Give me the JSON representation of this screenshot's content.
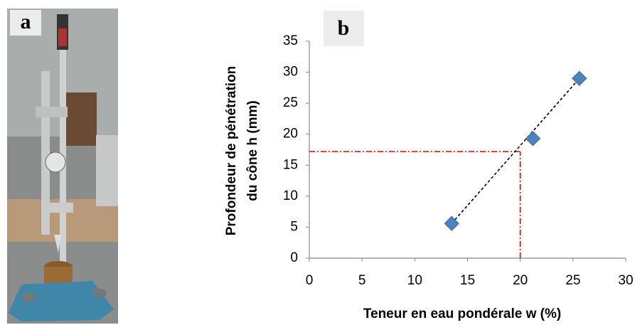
{
  "panel_labels": [
    "a",
    "b"
  ],
  "chart_data": {
    "type": "scatter",
    "xlabel": "Teneur en eau pondérale w (%)",
    "ylabel": [
      "Profondeur de pénétration",
      "du cône h (mm)"
    ],
    "x": [
      13.5,
      21.2,
      25.6
    ],
    "values": [
      5.6,
      19.3,
      29
    ],
    "color": "#4f81bd",
    "trendline": {
      "x": [
        13.5,
        25.6
      ],
      "values": [
        5.6,
        29
      ],
      "color": "#000000"
    },
    "reference": {
      "x": 20,
      "y": 17.2,
      "color": "#e00000"
    },
    "xlim": [
      0,
      30
    ],
    "xticks": [
      0,
      5,
      10,
      15,
      20,
      25,
      30
    ],
    "ylim": [
      0,
      35
    ],
    "yticks": [
      0,
      5,
      10,
      15,
      20,
      25,
      30,
      35
    ],
    "grid": false
  }
}
